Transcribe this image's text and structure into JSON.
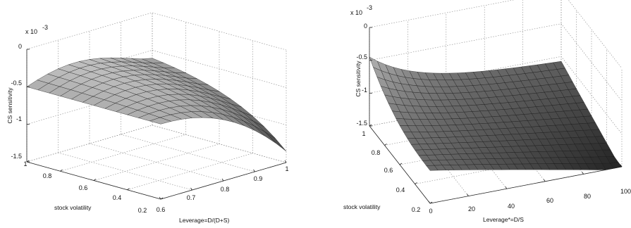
{
  "chart_data": [
    {
      "type": "surface",
      "xlabel": "Leverage=D/(D+S)",
      "ylabel": "stock volatility",
      "zlabel": "CS sensitivity",
      "z_exponent_label": "x 10",
      "z_exponent_power": "-3",
      "x_ticks": [
        "0.6",
        "0.7",
        "0.8",
        "0.9",
        "1"
      ],
      "y_ticks": [
        "0.2",
        "0.4",
        "0.6",
        "0.8",
        "1"
      ],
      "z_ticks": [
        "-1.5",
        "-1",
        "-0.5",
        "0"
      ],
      "xlim": [
        0.6,
        1.0
      ],
      "ylim": [
        0.2,
        1.0
      ],
      "zlim": [
        -1.5,
        0
      ],
      "grid": true,
      "colormap": "gray"
    },
    {
      "type": "surface",
      "xlabel": "Leverage*=D/S",
      "ylabel": "stock volatility",
      "zlabel": "CS sensitivity",
      "z_exponent_label": "x 10",
      "z_exponent_power": "-3",
      "x_ticks": [
        "0",
        "20",
        "40",
        "60",
        "80",
        "100"
      ],
      "y_ticks": [
        "0.2",
        "0.4",
        "0.6",
        "0.8",
        "1"
      ],
      "z_ticks": [
        "-1.5",
        "-1",
        "-0.5",
        "0"
      ],
      "xlim": [
        0,
        100
      ],
      "ylim": [
        0.2,
        1.0
      ],
      "zlim": [
        -1.5,
        0
      ],
      "grid": true,
      "colormap": "gray"
    }
  ]
}
